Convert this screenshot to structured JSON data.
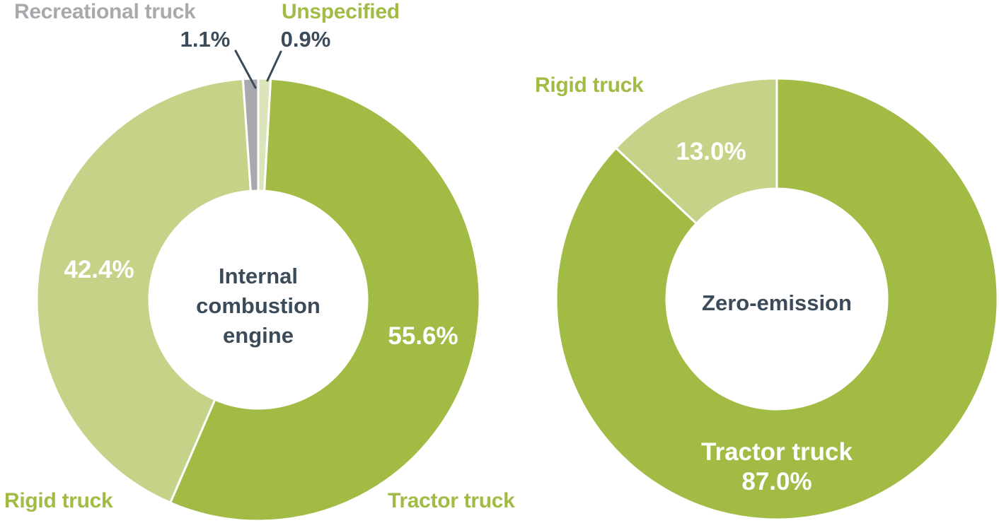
{
  "page": {
    "background": "#ffffff",
    "description": "Two donut charts comparing truck type shares for internal combustion engine and zero-emission vehicles"
  },
  "colors": {
    "tractor_truck_green": "#a1bb45",
    "rigid_truck_light_green": "#c4d387",
    "unspecified_pale_green": "#dce5ba",
    "recreational_truck_gray": "#a8a9ad",
    "dark_slate_text": "#3c4b59",
    "white_label": "#ffffff"
  },
  "chart_data": [
    {
      "type": "pie",
      "variant": "donut",
      "center_label": "Internal combustion engine",
      "start_angle_deg": 0,
      "direction": "clockwise",
      "legend_position": "callout-labels",
      "slices": [
        {
          "label": "Unspecified",
          "value": 0.9,
          "pct_label": "0.9%",
          "color": "#dce5ba"
        },
        {
          "label": "Tractor truck",
          "value": 55.6,
          "pct_label": "55.6%",
          "color": "#a1bb45"
        },
        {
          "label": "Rigid truck",
          "value": 42.4,
          "pct_label": "42.4%",
          "color": "#c4d387"
        },
        {
          "label": "Recreational truck",
          "value": 1.1,
          "pct_label": "1.1%",
          "color": "#a8a9ad"
        }
      ]
    },
    {
      "type": "pie",
      "variant": "donut",
      "center_label": "Zero-emission",
      "start_angle_deg": 0,
      "direction": "clockwise",
      "legend_position": "callout-labels",
      "slices": [
        {
          "label": "Tractor truck",
          "value": 87.0,
          "pct_label": "87.0%",
          "color": "#a1bb45"
        },
        {
          "label": "Rigid truck",
          "value": 13.0,
          "pct_label": "13.0%",
          "color": "#c4d387"
        }
      ]
    }
  ]
}
